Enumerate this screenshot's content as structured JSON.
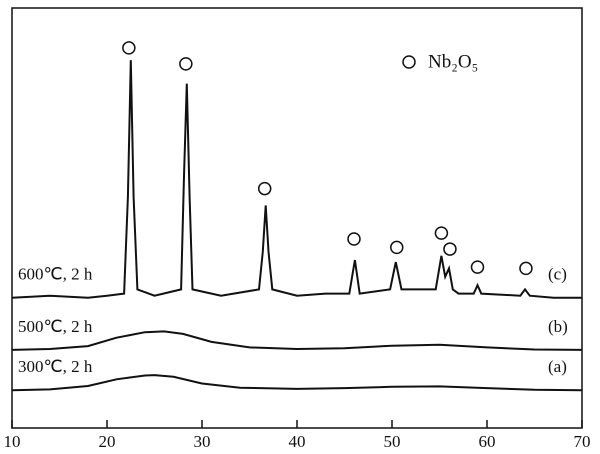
{
  "chart_data": {
    "type": "line",
    "xlim": [
      10,
      70
    ],
    "xticks": [
      10,
      20,
      30,
      40,
      50,
      60,
      70
    ],
    "ylim": [
      0,
      100
    ],
    "series": [
      {
        "name": "600℃, 2 h",
        "label": "(c)",
        "color": "#111111",
        "x": [
          10,
          14,
          18,
          20,
          21.8,
          22.2,
          22.5,
          22.8,
          23.2,
          25,
          27.8,
          28.1,
          28.4,
          28.7,
          29,
          32,
          36,
          36.4,
          36.7,
          37,
          37.4,
          40,
          43,
          45.5,
          46.1,
          46.6,
          49.8,
          50.4,
          51,
          54.6,
          55.2,
          55.6,
          56,
          56.4,
          57,
          58.6,
          59,
          59.4,
          63.5,
          64,
          64.5,
          67,
          70
        ],
        "values": [
          31,
          31.5,
          31,
          31.5,
          32,
          55,
          87.6,
          55,
          33,
          31.5,
          33,
          60,
          82,
          55,
          33,
          31.5,
          33,
          42,
          53,
          42,
          33,
          31.5,
          32,
          32,
          40,
          32,
          33,
          39.5,
          33,
          33,
          41,
          36,
          38,
          33,
          32,
          32,
          34,
          32,
          31.5,
          33,
          31.5,
          31,
          31
        ]
      },
      {
        "name": "500℃, 2 h",
        "label": "(b)",
        "color": "#111111",
        "x": [
          10,
          14,
          18,
          21,
          24,
          26,
          28,
          31,
          35,
          40,
          45,
          50,
          55,
          60,
          65,
          70
        ],
        "values": [
          18.6,
          18.8,
          19.5,
          21.5,
          22.8,
          23,
          22.4,
          20.5,
          19.2,
          18.8,
          19,
          19.6,
          19.8,
          19.2,
          18.7,
          18.6
        ]
      },
      {
        "name": "300℃, 2 h",
        "label": "(a)",
        "color": "#111111",
        "x": [
          10,
          14,
          18,
          21,
          24,
          25,
          27,
          30,
          34,
          40,
          45,
          50,
          55,
          60,
          65,
          70
        ],
        "values": [
          9,
          9.2,
          10,
          11.6,
          12.5,
          12.6,
          12.2,
          10.6,
          9.6,
          9.3,
          9.5,
          9.8,
          9.9,
          9.5,
          9.1,
          9
        ]
      }
    ],
    "markers": {
      "label": "Nb₂O₅",
      "x": [
        22.3,
        28.3,
        36.6,
        46.0,
        50.5,
        55.2,
        56.1,
        59.0,
        64.1
      ],
      "y": [
        90.5,
        86.7,
        57,
        45,
        43,
        46.4,
        42.6,
        38.3,
        38
      ]
    }
  }
}
